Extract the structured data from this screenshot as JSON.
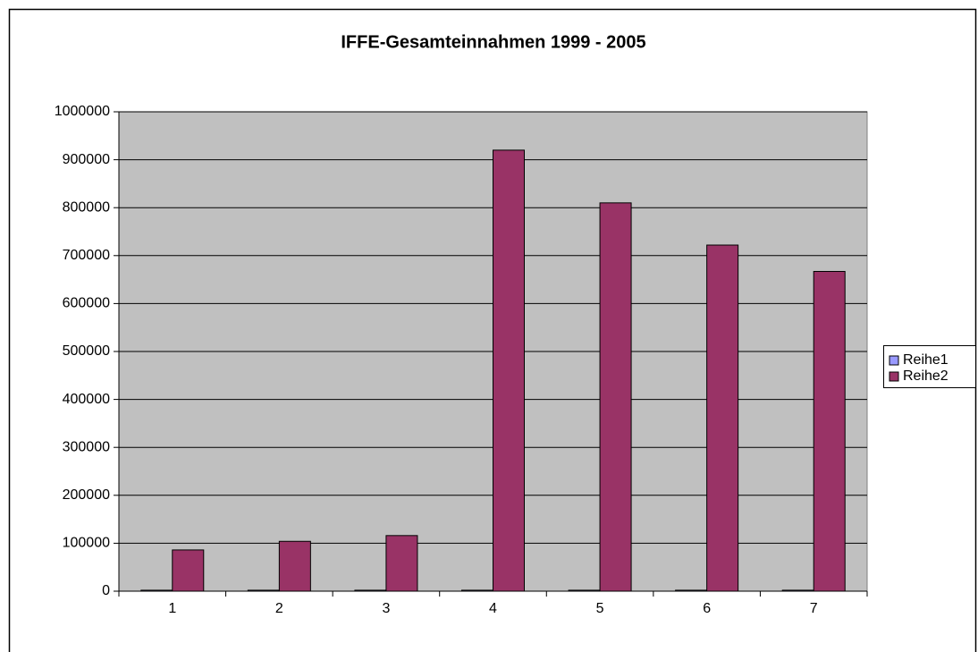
{
  "chart_data": {
    "type": "bar",
    "title": "IFFE-Gesamteinnahmen 1999 - 2005",
    "categories": [
      "1",
      "2",
      "3",
      "4",
      "5",
      "6",
      "7"
    ],
    "series": [
      {
        "name": "Reihe1",
        "color": "#9999ff",
        "values": [
          1999,
          2000,
          2001,
          2002,
          2003,
          2004,
          2005
        ]
      },
      {
        "name": "Reihe2",
        "color": "#993366",
        "values": [
          86000,
          104000,
          116000,
          920000,
          810000,
          722000,
          667000
        ]
      }
    ],
    "ylim": [
      0,
      1000000
    ],
    "yticks": [
      0,
      100000,
      200000,
      300000,
      400000,
      500000,
      600000,
      700000,
      800000,
      900000,
      1000000
    ],
    "grid": true,
    "legend": "right",
    "plot_background": "#c0c0c0"
  }
}
